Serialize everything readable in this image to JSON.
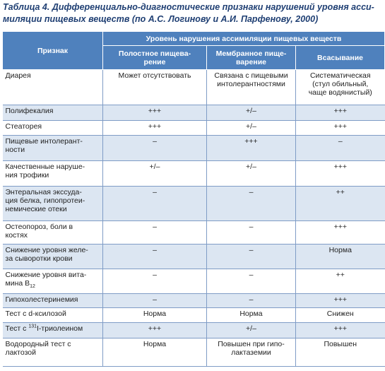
{
  "header": {
    "title": "Таблица 4. Дифференциально-диагностические признаки нарушений уровня асси-\nмиляции пищевых веществ (по А.С. Логинову и А.И. Парфенову, 2000)"
  },
  "table": {
    "head": {
      "feature": "Признак",
      "group": "Уровень нарушения ассимиляции пищевых веществ",
      "columns": [
        "Полостное пищева-\nрение",
        "Мембранное пище-\nварение",
        "Всасывание"
      ]
    },
    "rows": [
      [
        "Диарея",
        "Может отсутствовать",
        "Связана с пищевыми\nинтолерантностями",
        "Систематическая\n(стул обильный,\nчаще водянистый)"
      ],
      [
        "Полифекалия",
        "+++",
        "+/–",
        "+++"
      ],
      [
        "Стеаторея",
        "+++",
        "+/–",
        "+++"
      ],
      [
        "Пищевые интолерант-\nности",
        "–",
        "+++",
        "–"
      ],
      [
        "Качественные наруше-\nния трофики",
        "+/–",
        "+/–",
        "+++"
      ],
      [
        "Энтеральная экссуда-\nция белка, гипопротеи-\nнемические отеки",
        "–",
        "–",
        "++"
      ],
      [
        "Остеопороз, боли в\nкостях",
        "–",
        "–",
        "+++"
      ],
      [
        "Снижение уровня желе-\nза сыворотки крови",
        "–",
        "–",
        "Норма"
      ],
      [
        {
          "text": "Снижение уровня вита-\nмина B",
          "sub": "12"
        },
        "–",
        "–",
        "++"
      ],
      [
        "Гипохолестеринемия",
        "–",
        "–",
        "+++"
      ],
      [
        "Тест с d-ксилозой",
        "Норма",
        "Норма",
        "Снижен"
      ],
      [
        {
          "pre": "Тест с ",
          "sup": "131",
          "post": "I-триолеином"
        },
        "+++",
        "+/–",
        "+++"
      ],
      [
        "Водородный тест с\nлактозой",
        "Норма",
        "Повышен при гипо-\nлактаземии",
        "Повышен"
      ]
    ]
  }
}
